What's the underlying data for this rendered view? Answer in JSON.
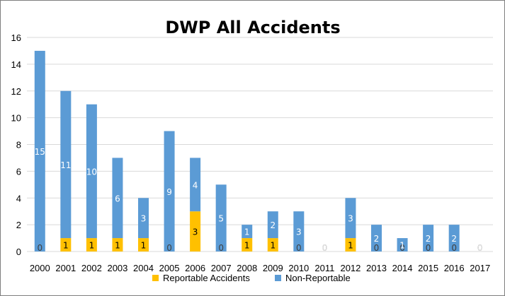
{
  "chart_data": {
    "type": "bar",
    "stacked": true,
    "title": "DWP All Accidents",
    "xlabel": "",
    "ylabel": "",
    "ylim": [
      0,
      16
    ],
    "y_ticks": [
      "0",
      "2",
      "4",
      "6",
      "8",
      "10",
      "12",
      "14",
      "16"
    ],
    "grid": true,
    "legend_position": "bottom",
    "categories": [
      "2000",
      "2001",
      "2002",
      "2003",
      "2004",
      "2005",
      "2006",
      "2007",
      "2008",
      "2009",
      "2010",
      "2011",
      "2012",
      "2013",
      "2014",
      "2015",
      "2016",
      "2017"
    ],
    "series": [
      {
        "name": "Reportable Accidents",
        "color": "#ffc000",
        "values": [
          0,
          1,
          1,
          1,
          1,
          0,
          3,
          0,
          1,
          1,
          0,
          0,
          1,
          0,
          0,
          0,
          0,
          0
        ]
      },
      {
        "name": "Non-Reportable",
        "color": "#5b9bd5",
        "values": [
          15,
          11,
          10,
          6,
          3,
          9,
          4,
          5,
          1,
          2,
          3,
          0,
          3,
          2,
          1,
          2,
          2,
          0
        ]
      }
    ]
  }
}
